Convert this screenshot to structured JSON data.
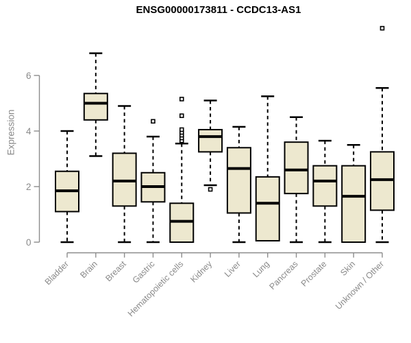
{
  "title": "ENSG00000173811 - CCDC13-AS1",
  "y_axis": {
    "label": "Expression",
    "tick_labels": [
      "0",
      "2",
      "4",
      "6"
    ]
  },
  "chart_data": {
    "type": "boxplot",
    "title": "ENSG00000173811 - CCDC13-AS1",
    "xlabel": "",
    "ylabel": "Expression",
    "ylim": [
      0,
      7.9
    ],
    "y_ticks": [
      0,
      2,
      4,
      6
    ],
    "grid": false,
    "legend": "none",
    "categories": [
      "Bladder",
      "Brain",
      "Breast",
      "Gastric",
      "Hematopoietic cells",
      "Kidney",
      "Liver",
      "Lung",
      "Pancreas",
      "Prostate",
      "Skin",
      "Unknown / Other"
    ],
    "series": [
      {
        "name": "Bladder",
        "whisker_low": 0,
        "q1": 1.1,
        "median": 1.85,
        "q3": 2.55,
        "whisker_high": 4.0,
        "outliers": []
      },
      {
        "name": "Brain",
        "whisker_low": 3.1,
        "q1": 4.4,
        "median": 5.0,
        "q3": 5.35,
        "whisker_high": 6.8,
        "outliers": []
      },
      {
        "name": "Breast",
        "whisker_low": 0,
        "q1": 1.3,
        "median": 2.2,
        "q3": 3.2,
        "whisker_high": 4.9,
        "outliers": []
      },
      {
        "name": "Gastric",
        "whisker_low": 0,
        "q1": 1.45,
        "median": 2.0,
        "q3": 2.5,
        "whisker_high": 3.8,
        "outliers": [
          4.35
        ]
      },
      {
        "name": "Hematopoietic cells",
        "whisker_low": 0,
        "q1": 0,
        "median": 0.75,
        "q3": 1.4,
        "whisker_high": 3.55,
        "outliers": [
          3.65,
          3.75,
          3.85,
          3.95,
          4.05,
          4.55,
          5.15
        ]
      },
      {
        "name": "Kidney",
        "whisker_low": 2.05,
        "q1": 3.25,
        "median": 3.8,
        "q3": 4.05,
        "whisker_high": 5.1,
        "outliers": [
          1.9
        ]
      },
      {
        "name": "Liver",
        "whisker_low": 0,
        "q1": 1.05,
        "median": 2.65,
        "q3": 3.4,
        "whisker_high": 4.15,
        "outliers": []
      },
      {
        "name": "Lung",
        "whisker_low": 0,
        "q1": 0.05,
        "median": 1.4,
        "q3": 2.35,
        "whisker_high": 5.25,
        "outliers": []
      },
      {
        "name": "Pancreas",
        "whisker_low": 0,
        "q1": 1.75,
        "median": 2.6,
        "q3": 3.6,
        "whisker_high": 4.5,
        "outliers": []
      },
      {
        "name": "Prostate",
        "whisker_low": 0,
        "q1": 1.3,
        "median": 2.2,
        "q3": 2.75,
        "whisker_high": 3.65,
        "outliers": []
      },
      {
        "name": "Skin",
        "whisker_low": 0,
        "q1": 0,
        "median": 1.65,
        "q3": 2.75,
        "whisker_high": 3.5,
        "outliers": []
      },
      {
        "name": "Unknown / Other",
        "whisker_low": 0,
        "q1": 1.15,
        "median": 2.25,
        "q3": 3.25,
        "whisker_high": 5.55,
        "outliers": [
          7.7
        ]
      }
    ],
    "colors": {
      "box_fill": "#EDE8CF",
      "box_stroke": "#000000",
      "median": "#000000",
      "whisker": "#000000",
      "axis": "#8C8C8C",
      "tick_text": "#8A8A8A",
      "title_text": "#000000",
      "background": "#FFFFFF"
    }
  }
}
